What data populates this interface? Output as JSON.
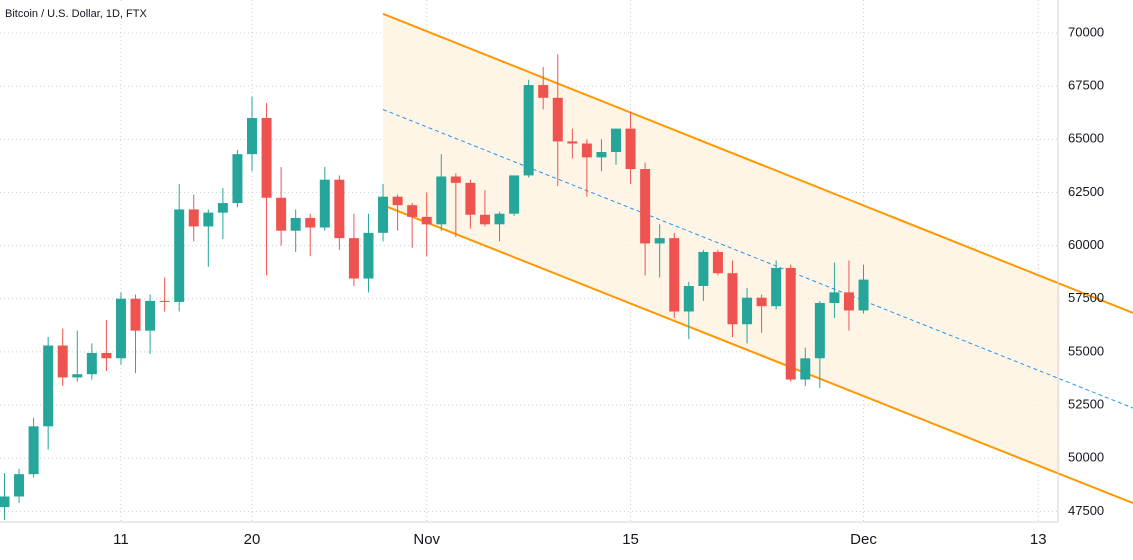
{
  "chart_data": {
    "type": "candlestick",
    "title": "Bitcoin / U.S. Dollar, 1D, FTX",
    "categories": [
      null,
      null,
      null,
      null,
      null,
      null,
      null,
      null,
      "11",
      null,
      null,
      null,
      null,
      null,
      null,
      null,
      null,
      "20",
      null,
      null,
      null,
      null,
      null,
      null,
      null,
      null,
      null,
      null,
      null,
      "Nov",
      null,
      null,
      null,
      null,
      null,
      null,
      null,
      null,
      null,
      null,
      null,
      null,
      null,
      "15",
      null,
      null,
      null,
      null,
      null,
      null,
      null,
      null,
      null,
      null,
      null,
      null,
      null,
      null,
      null,
      "Dec",
      null,
      null,
      null,
      null,
      null,
      null,
      null,
      null,
      null,
      null,
      null,
      "13",
      null
    ],
    "open": [
      47700,
      48200,
      49250,
      51500,
      55300,
      53800,
      53950,
      54950,
      54700,
      57500,
      56000,
      57400,
      57350,
      61700,
      60900,
      61550,
      62000,
      64300,
      66000,
      62250,
      60700,
      61300,
      60850,
      63100,
      60350,
      58450,
      60600,
      62300,
      61900,
      61350,
      61000,
      63250,
      62950,
      61450,
      61000,
      61500,
      63300,
      67550,
      66950,
      64900,
      64800,
      64150,
      64400,
      65500,
      63600,
      60100,
      60350,
      56900,
      58100,
      59700,
      58700,
      56300,
      57550,
      57150,
      58950,
      53700,
      54700,
      57300,
      57800,
      56950,
      null,
      null,
      null,
      null,
      null,
      null,
      null,
      null,
      null,
      null,
      null,
      null,
      null
    ],
    "high": [
      49300,
      49500,
      51900,
      55700,
      56100,
      56000,
      55400,
      56500,
      57800,
      57700,
      57700,
      58500,
      62900,
      62400,
      61700,
      62700,
      64500,
      67000,
      66700,
      63700,
      61700,
      61500,
      63700,
      63300,
      61500,
      61500,
      62900,
      62400,
      62000,
      62500,
      64300,
      63400,
      63100,
      62600,
      61600,
      63300,
      67800,
      68400,
      69000,
      65500,
      65000,
      65000,
      65500,
      66300,
      63900,
      61000,
      60600,
      58300,
      59800,
      59800,
      59300,
      58000,
      57700,
      59300,
      59100,
      55200,
      57400,
      59200,
      59300,
      59100,
      null,
      null,
      null,
      null,
      null,
      null,
      null,
      null,
      null,
      null,
      null,
      null,
      null
    ],
    "low": [
      47100,
      47900,
      49100,
      50400,
      53400,
      53600,
      53700,
      54100,
      54400,
      54000,
      54900,
      56900,
      56900,
      60200,
      59000,
      60300,
      61800,
      63500,
      58600,
      60000,
      59700,
      59500,
      60700,
      59800,
      58100,
      57800,
      60200,
      60700,
      59900,
      59500,
      60700,
      60400,
      60800,
      60900,
      60200,
      61400,
      63200,
      66400,
      62800,
      64100,
      62300,
      63500,
      63800,
      62900,
      58600,
      58500,
      56600,
      55600,
      57400,
      58600,
      55700,
      55400,
      55900,
      57000,
      53600,
      53400,
      53300,
      56600,
      56000,
      56800,
      null,
      null,
      null,
      null,
      null,
      null,
      null,
      null,
      null,
      null,
      null,
      null,
      null
    ],
    "close": [
      48200,
      49250,
      51500,
      55300,
      53800,
      53950,
      54950,
      54700,
      57500,
      56000,
      57400,
      57350,
      61700,
      60900,
      61550,
      62000,
      64300,
      66000,
      62250,
      60700,
      61300,
      60850,
      63100,
      60350,
      58450,
      60600,
      62300,
      61900,
      61350,
      61000,
      63250,
      62950,
      61450,
      61000,
      61500,
      63300,
      67550,
      66950,
      64900,
      64800,
      64150,
      64400,
      65500,
      63600,
      60100,
      60350,
      56900,
      58100,
      59700,
      58700,
      56300,
      57550,
      57150,
      58950,
      53700,
      54700,
      57300,
      57800,
      56950,
      58400,
      null,
      null,
      null,
      null,
      null,
      null,
      null,
      null,
      null,
      null,
      null,
      null,
      null
    ],
    "up_color": "#26a69a",
    "down_color": "#ef5350",
    "channel": {
      "upper": [
        70900,
        58200
      ],
      "lower": [
        61900,
        49250
      ],
      "color": "#ff9800",
      "fill": "#fff3e0",
      "mid_color": "#2196f3"
    },
    "ylim": [
      47000,
      71550
    ],
    "yticks": [
      47500,
      50000,
      52500,
      55000,
      57500,
      60000,
      62500,
      65000,
      67500,
      70000
    ],
    "grid": true
  }
}
